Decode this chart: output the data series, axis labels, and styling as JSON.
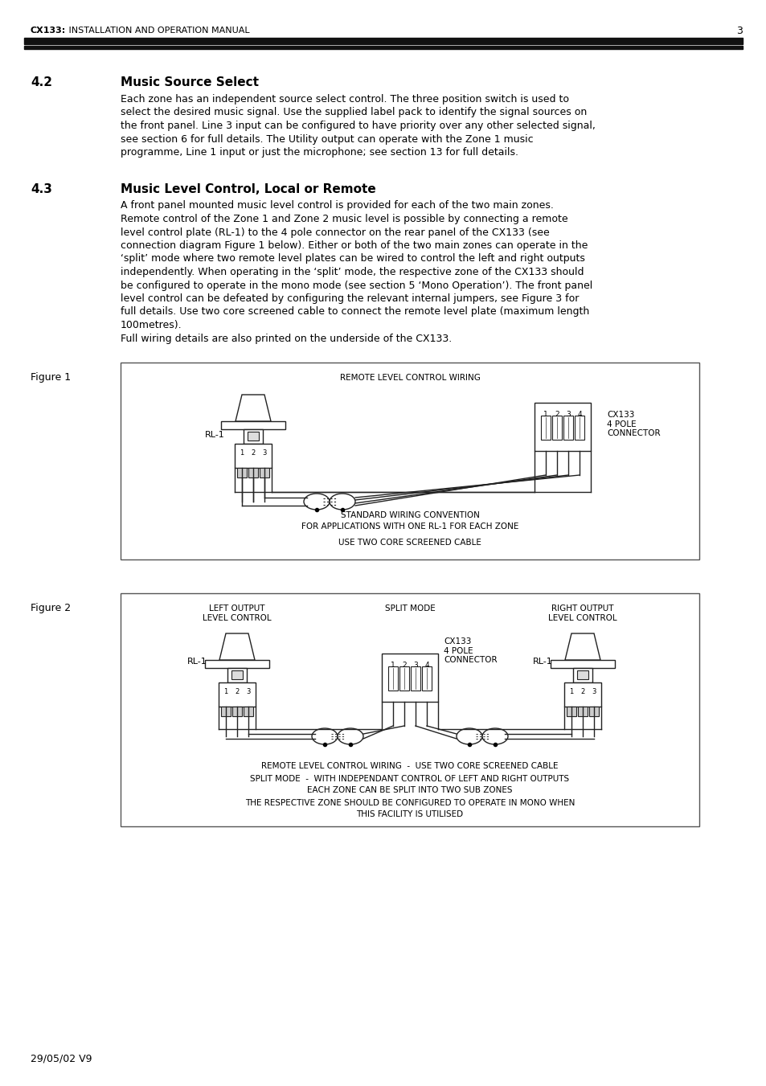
{
  "page_title_bold": "CX133:",
  "page_title_normal": " INSTALLATION AND OPERATION MANUAL",
  "page_number": "3",
  "section_42_number": "4.2",
  "section_42_title": "Music Source Select",
  "section_42_text": "Each zone has an independent source select control. The three position switch is used to\nselect the desired music signal. Use the supplied label pack to identify the signal sources on\nthe front panel. Line 3 input can be configured to have priority over any other selected signal,\nsee section 6 for full details. The Utility output can operate with the Zone 1 music\nprogramme, Line 1 input or just the microphone; see section 13 for full details.",
  "section_43_number": "4.3",
  "section_43_title": "Music Level Control, Local or Remote",
  "section_43_text": "A front panel mounted music level control is provided for each of the two main zones.\nRemote control of the Zone 1 and Zone 2 music level is possible by connecting a remote\nlevel control plate (RL-1) to the 4 pole connector on the rear panel of the CX133 (see\nconnection diagram Figure 1 below). Either or both of the two main zones can operate in the\n‘split’ mode where two remote level plates can be wired to control the left and right outputs\nindependently. When operating in the ‘split’ mode, the respective zone of the CX133 should\nbe configured to operate in the mono mode (see section 5 ‘Mono Operation’). The front panel\nlevel control can be defeated by configuring the relevant internal jumpers, see Figure 3 for\nfull details. Use two core screened cable to connect the remote level plate (maximum length\n100metres).\nFull wiring details are also printed on the underside of the CX133.",
  "figure1_label": "Figure 1",
  "figure2_label": "Figure 2",
  "fig1_title": "REMOTE LEVEL CONTROL WIRING",
  "fig1_cx133_label": "CX133\n4 POLE\nCONNECTOR",
  "fig1_rl1_label": "RL-1",
  "fig2_left_label": "LEFT OUTPUT\nLEVEL CONTROL",
  "fig2_split_label": "SPLIT MODE",
  "fig2_right_label": "RIGHT OUTPUT\nLEVEL CONTROL",
  "fig2_cx133_label": "CX133\n4 POLE\nCONNECTOR",
  "fig2_rl1_left": "RL-1",
  "fig2_rl1_right": "RL-1",
  "fig1_bottom1": "STANDARD WIRING CONVENTION",
  "fig1_bottom2": "FOR APPLICATIONS WITH ONE RL-1 FOR EACH ZONE",
  "fig1_bottom3": "USE TWO CORE SCREENED CABLE",
  "fig2_bottom1": "REMOTE LEVEL CONTROL WIRING  -  USE TWO CORE SCREENED CABLE",
  "fig2_bottom2": "SPLIT MODE  -  WITH INDEPENDANT CONTROL OF LEFT AND RIGHT OUTPUTS",
  "fig2_bottom3": "EACH ZONE CAN BE SPLIT INTO TWO SUB ZONES",
  "fig2_bottom4": "THE RESPECTIVE ZONE SHOULD BE CONFIGURED TO OPERATE IN MONO WHEN",
  "fig2_bottom5": "THIS FACILITY IS UTILISED",
  "footer_text": "29/05/02 V9",
  "bg_color": "#ffffff",
  "text_color": "#000000",
  "header_bar_color": "#111111",
  "box_border_color": "#444444"
}
